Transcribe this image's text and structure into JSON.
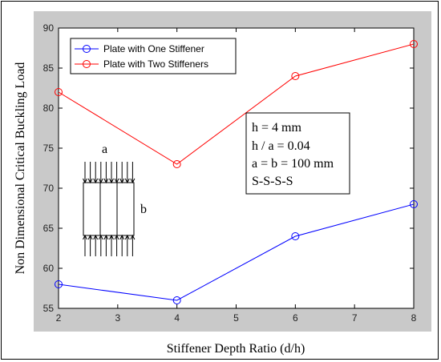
{
  "chart_data": {
    "type": "line",
    "title": "",
    "xlabel": "Stiffener Depth Ratio (d/h)",
    "ylabel": "Non Dimensional Critical Buckling Load",
    "x": [
      2,
      4,
      6,
      8
    ],
    "xlim": [
      2,
      8
    ],
    "ylim": [
      55,
      90
    ],
    "xticks": [
      2,
      3,
      4,
      5,
      6,
      7,
      8
    ],
    "yticks": [
      55,
      60,
      65,
      70,
      75,
      80,
      85,
      90
    ],
    "grid": false,
    "legend_position": "top-left",
    "series": [
      {
        "name": "Plate with One Stiffener",
        "color": "#0000ff",
        "marker": "circle",
        "values": [
          58,
          56,
          64,
          68
        ]
      },
      {
        "name": "Plate with Two Stiffeners",
        "color": "#ff0000",
        "marker": "circle",
        "values": [
          82,
          73,
          84,
          88
        ]
      }
    ],
    "annotations": [
      "h = 4 mm",
      "h / a = 0.04",
      "a = b = 100 mm",
      "S-S-S-S"
    ],
    "diagram_labels": {
      "a": "a",
      "b": "b"
    }
  }
}
